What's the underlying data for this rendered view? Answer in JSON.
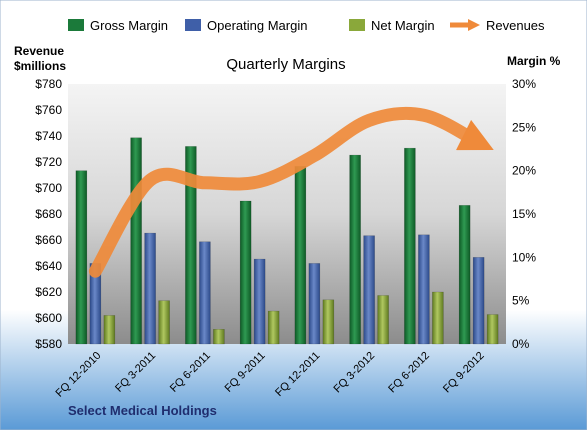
{
  "chart_data": {
    "type": "bar",
    "title": "Quarterly Margins",
    "company": "Select Medical Holdings",
    "left_axis_label": [
      "Revenue",
      "$millions"
    ],
    "right_axis_label": "Margin %",
    "categories": [
      "FQ 12-2010",
      "FQ 3-2011",
      "FQ 6-2011",
      "FQ 9-2011",
      "FQ 12-2011",
      "FQ 3-2012",
      "FQ 6-2012",
      "FQ 9-2012"
    ],
    "ylim_left": [
      580,
      780
    ],
    "yticks_left": [
      "$580",
      "$600",
      "$620",
      "$640",
      "$660",
      "$680",
      "$700",
      "$720",
      "$740",
      "$760",
      "$780"
    ],
    "ylim_right": [
      0,
      30
    ],
    "yticks_right": [
      "0%",
      "5%",
      "10%",
      "15%",
      "20%",
      "25%",
      "30%"
    ],
    "grid": "off",
    "legend_position": "top",
    "series": [
      {
        "name": "Gross Margin",
        "axis": "right",
        "kind": "bar",
        "color": "#1b7a3a",
        "values": [
          20.0,
          23.8,
          22.8,
          16.5,
          20.5,
          21.8,
          22.6,
          16.0
        ]
      },
      {
        "name": "Operating Margin",
        "axis": "right",
        "kind": "bar",
        "color": "#3f5fa8",
        "values": [
          9.3,
          12.8,
          11.8,
          9.8,
          9.3,
          12.5,
          12.6,
          10.0
        ]
      },
      {
        "name": "Net Margin",
        "axis": "right",
        "kind": "bar",
        "color": "#8aa83a",
        "values": [
          3.3,
          5.0,
          1.7,
          3.8,
          5.1,
          5.6,
          6.0,
          3.4
        ]
      },
      {
        "name": "Revenues",
        "axis": "left",
        "kind": "line",
        "color": "#ef8a3a",
        "values": [
          636,
          706,
          704,
          705,
          725,
          752,
          756,
          735
        ]
      }
    ]
  }
}
